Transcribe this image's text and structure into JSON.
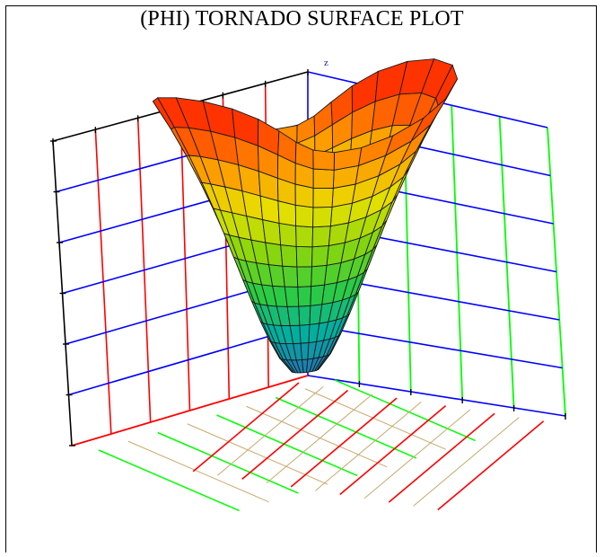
{
  "chart_data": {
    "type": "surface",
    "title": "(PHI) TORNADO SURFACE PLOT",
    "z_axis_label": "z",
    "grid": true,
    "colormap": [
      "#1f77b4",
      "#00b0a0",
      "#2ecc40",
      "#8bd60c",
      "#e8e000",
      "#ff9900",
      "#ff3300"
    ],
    "wall_colors": {
      "back_left_vertical": "#ff0000",
      "horizontal": "#0000ff",
      "back_right_vertical": "#00ff00",
      "floor_a": "#ff0000",
      "floor_b": "#00ff00",
      "floor_minor": "#c8a96e",
      "frame": "#000000"
    },
    "grid_divisions": {
      "x": 6,
      "y": 5,
      "z": 6
    },
    "surface": {
      "radial_steps": 12,
      "angular_steps": 28,
      "rim_waves": 2,
      "rim_wave_amplitude": 0.35
    }
  }
}
